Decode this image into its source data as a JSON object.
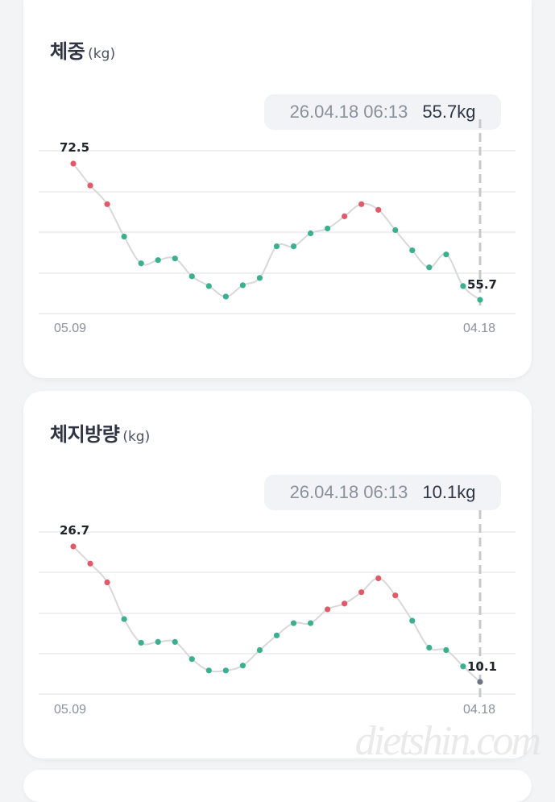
{
  "cards": [
    {
      "title": "체중",
      "unit": "(kg)",
      "tooltip": {
        "date": "26.04.18 06:13",
        "value": "55.7kg"
      },
      "x_start": "05.09",
      "x_end": "04.18",
      "first_label": "72.5",
      "last_label": "55.7"
    },
    {
      "title": "체지방량",
      "unit": "(kg)",
      "tooltip": {
        "date": "26.04.18 06:13",
        "value": "10.1kg"
      },
      "x_start": "05.09",
      "x_end": "04.18",
      "first_label": "26.7",
      "last_label": "10.1"
    }
  ],
  "colors": {
    "up": "#e05a6a",
    "down": "#3bb08f",
    "last": "#6b7585",
    "line": "#d8d8d8",
    "grid": "#ececef"
  },
  "watermark": "dietshin.com",
  "chart_data": [
    {
      "type": "line",
      "title": "체중 (kg)",
      "xlabel": "",
      "ylabel": "kg",
      "x_tick_labels": [
        "05.09",
        "04.18"
      ],
      "grid": true,
      "selected_point": {
        "date": "26.04.18 06:13",
        "value": 55.7
      },
      "values": [
        72.5,
        69.8,
        67.5,
        63.5,
        60.2,
        60.6,
        60.8,
        58.6,
        57.4,
        56.1,
        57.5,
        58.4,
        62.3,
        62.3,
        63.9,
        64.5,
        66.0,
        67.5,
        66.8,
        64.3,
        61.8,
        59.7,
        61.3,
        57.4,
        55.7
      ],
      "point_colors": [
        "up",
        "up",
        "up",
        "down",
        "down",
        "down",
        "down",
        "down",
        "down",
        "down",
        "down",
        "down",
        "down",
        "down",
        "down",
        "down",
        "up",
        "up",
        "up",
        "down",
        "down",
        "down",
        "down",
        "down",
        "down"
      ],
      "annotations": [
        {
          "index": 0,
          "text": "72.5"
        },
        {
          "index": 24,
          "text": "55.7"
        }
      ]
    },
    {
      "type": "line",
      "title": "체지방량 (kg)",
      "xlabel": "",
      "ylabel": "kg",
      "x_tick_labels": [
        "05.09",
        "04.18"
      ],
      "grid": true,
      "selected_point": {
        "date": "26.04.18 06:13",
        "value": 10.1
      },
      "values": [
        26.7,
        24.6,
        22.3,
        17.8,
        14.9,
        15.0,
        15.0,
        12.9,
        11.5,
        11.5,
        12.1,
        14.0,
        15.8,
        17.3,
        17.3,
        19.0,
        19.7,
        21.1,
        22.8,
        20.7,
        17.6,
        14.3,
        14.0,
        12.0,
        10.1
      ],
      "point_colors": [
        "up",
        "up",
        "up",
        "down",
        "down",
        "down",
        "down",
        "down",
        "down",
        "down",
        "down",
        "down",
        "down",
        "down",
        "down",
        "up",
        "up",
        "up",
        "up",
        "up",
        "down",
        "down",
        "down",
        "down",
        "last"
      ],
      "annotations": [
        {
          "index": 0,
          "text": "26.7"
        },
        {
          "index": 24,
          "text": "10.1"
        }
      ]
    }
  ]
}
